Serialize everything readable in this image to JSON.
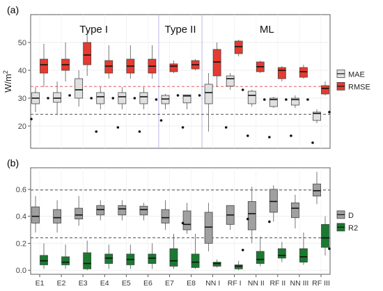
{
  "chart_data": [
    {
      "type": "boxplot",
      "panel_label": "(a)",
      "ylabel": "W/m²",
      "ylabel_main": "W/m",
      "ylabel_sup": "2",
      "ylim": [
        12,
        60
      ],
      "yticks": [
        "20",
        "30",
        "40",
        "50"
      ],
      "ytick_values": [
        20,
        30,
        40,
        50
      ],
      "categories": [
        "E1",
        "E2",
        "E3",
        "E4",
        "E5",
        "E6",
        "E7",
        "E8",
        "NN I",
        "RF I",
        "NN II",
        "RF II",
        "NN III",
        "RF III"
      ],
      "groups": [
        {
          "label": "Type I",
          "from": 0,
          "to": 5
        },
        {
          "label": "Type II",
          "from": 6,
          "to": 7
        },
        {
          "label": "ML",
          "from": 8,
          "to": 13
        }
      ],
      "reference_lines": [
        {
          "value": 34.2,
          "color": "#e04040"
        },
        {
          "value": 24.2,
          "color": "#333333"
        }
      ],
      "legend": {
        "position": "right",
        "entries": [
          "MAE",
          "RMSE"
        ]
      },
      "series": [
        {
          "name": "MAE",
          "color": "#e0e0e0",
          "boxes": [
            {
              "whisker_low": 25,
              "q1": 28,
              "median": 30,
              "q3": 32,
              "whisker_high": 34,
              "outlier": 22.5
            },
            {
              "whisker_low": 24,
              "q1": 28.5,
              "median": 30,
              "q3": 32,
              "whisker_high": 36,
              "outlier": null
            },
            {
              "whisker_low": 27,
              "q1": 30,
              "median": 33,
              "q3": 37,
              "whisker_high": 40,
              "outlier": null
            },
            {
              "whisker_low": 26,
              "q1": 28,
              "median": 30.5,
              "q3": 32,
              "whisker_high": 34,
              "outlier": 18
            },
            {
              "whisker_low": 26,
              "q1": 28,
              "median": 30.5,
              "q3": 32,
              "whisker_high": 34,
              "outlier": 19.5
            },
            {
              "whisker_low": 26,
              "q1": 28,
              "median": 30.5,
              "q3": 32,
              "whisker_high": 34,
              "outlier": 18
            },
            {
              "whisker_low": 26,
              "q1": 28,
              "median": 29.7,
              "q3": 31,
              "whisker_high": 31.5,
              "outlier": 22
            },
            {
              "whisker_low": 26,
              "q1": 28.3,
              "median": 30.8,
              "q3": 31.2,
              "whisker_high": 31.3,
              "outlier": 19.5
            },
            {
              "whisker_low": 18,
              "q1": 28,
              "median": 32,
              "q3": 35,
              "whisker_high": 39,
              "outlier": null
            },
            {
              "whisker_low": 33,
              "q1": 34.3,
              "median": 37,
              "q3": 38,
              "whisker_high": 39,
              "outlier": 19.5
            },
            {
              "whisker_low": 27,
              "q1": 28,
              "median": 31,
              "q3": 32.5,
              "whisker_high": 33,
              "outlier": 16.5
            },
            {
              "whisker_low": 26.5,
              "q1": 27,
              "median": 29.5,
              "q3": 30,
              "whisker_high": 30.5,
              "outlier": 16
            },
            {
              "whisker_low": 26.5,
              "q1": 27.5,
              "median": 29.5,
              "q3": 30,
              "whisker_high": 31,
              "outlier": 16.5
            },
            {
              "whisker_low": 21,
              "q1": 22,
              "median": 24.5,
              "q3": 25,
              "whisker_high": 26,
              "outlier": 14
            }
          ]
        },
        {
          "name": "RMSE",
          "color": "#e53b30",
          "boxes": [
            {
              "whisker_low": 34,
              "q1": 39,
              "median": 42,
              "q3": 44,
              "whisker_high": 49.5,
              "outlier": 30
            },
            {
              "whisker_low": 36,
              "q1": 40,
              "median": 42,
              "q3": 44,
              "whisker_high": 50,
              "outlier": 31
            },
            {
              "whisker_low": 38,
              "q1": 42,
              "median": 45.5,
              "q3": 50,
              "whisker_high": 54,
              "outlier": 30
            },
            {
              "whisker_low": 37,
              "q1": 39,
              "median": 41.5,
              "q3": 43.5,
              "whisker_high": 49,
              "outlier": 30
            },
            {
              "whisker_low": 37,
              "q1": 39,
              "median": 41.5,
              "q3": 44,
              "whisker_high": 49,
              "outlier": 30
            },
            {
              "whisker_low": 37,
              "q1": 39,
              "median": 41.5,
              "q3": 44,
              "whisker_high": 49,
              "outlier": 29.5
            },
            {
              "whisker_low": 39,
              "q1": 39.5,
              "median": 41.5,
              "q3": 42.3,
              "whisker_high": 43.5,
              "outlier": 31
            },
            {
              "whisker_low": 40,
              "q1": 40.5,
              "median": 42,
              "q3": 43.5,
              "whisker_high": 44,
              "outlier": 31
            },
            {
              "whisker_low": 34,
              "q1": 38,
              "median": 43,
              "q3": 47.5,
              "whisker_high": 50,
              "outlier": null
            },
            {
              "whisker_low": 45,
              "q1": 46,
              "median": 48.5,
              "q3": 50.5,
              "whisker_high": 51,
              "outlier": 33
            },
            {
              "whisker_low": 39,
              "q1": 39.5,
              "median": 41.3,
              "q3": 43,
              "whisker_high": 43.5,
              "outlier": 29.5
            },
            {
              "whisker_low": 36,
              "q1": 37,
              "median": 40,
              "q3": 41,
              "whisker_high": 41.5,
              "outlier": 29.5
            },
            {
              "whisker_low": 37,
              "q1": 37.5,
              "median": 39.5,
              "q3": 41,
              "whisker_high": 42,
              "outlier": 29.5
            },
            {
              "whisker_low": 31,
              "q1": 31.5,
              "median": 33.5,
              "q3": 34.5,
              "whisker_high": 36,
              "outlier": 25
            }
          ]
        }
      ]
    },
    {
      "type": "boxplot",
      "panel_label": "(b)",
      "ylim": [
        -0.03,
        0.76
      ],
      "yticks": [
        "0.0",
        "0.2",
        "0.4",
        "0.6"
      ],
      "ytick_values": [
        0,
        0.2,
        0.4,
        0.6
      ],
      "categories": [
        "E1",
        "E2",
        "E3",
        "E4",
        "E5",
        "E6",
        "E7",
        "E8",
        "NN I",
        "RF I",
        "NN II",
        "RF II",
        "NN III",
        "RF III"
      ],
      "reference_lines": [
        {
          "value": 0.595,
          "color": "#333333"
        },
        {
          "value": 0.24,
          "color": "#333333"
        }
      ],
      "legend": {
        "position": "right",
        "entries": [
          "D",
          "R2"
        ]
      },
      "series": [
        {
          "name": "D",
          "color": "#a0a0a0",
          "boxes": [
            {
              "whisker_low": 0.28,
              "q1": 0.35,
              "median": 0.4,
              "q3": 0.47,
              "whisker_high": 0.55,
              "outlier": null
            },
            {
              "whisker_low": 0.28,
              "q1": 0.35,
              "median": 0.39,
              "q3": 0.45,
              "whisker_high": 0.52,
              "outlier": null
            },
            {
              "whisker_low": 0.33,
              "q1": 0.38,
              "median": 0.41,
              "q3": 0.46,
              "whisker_high": 0.55,
              "outlier": null
            },
            {
              "whisker_low": 0.37,
              "q1": 0.41,
              "median": 0.45,
              "q3": 0.48,
              "whisker_high": 0.52,
              "outlier": null
            },
            {
              "whisker_low": 0.37,
              "q1": 0.41,
              "median": 0.455,
              "q3": 0.48,
              "whisker_high": 0.52,
              "outlier": null
            },
            {
              "whisker_low": 0.37,
              "q1": 0.41,
              "median": 0.45,
              "q3": 0.475,
              "whisker_high": 0.5,
              "outlier": null
            },
            {
              "whisker_low": 0.3,
              "q1": 0.35,
              "median": 0.39,
              "q3": 0.45,
              "whisker_high": 0.52,
              "outlier": null
            },
            {
              "whisker_low": 0.27,
              "q1": 0.3,
              "median": 0.34,
              "q3": 0.44,
              "whisker_high": 0.5,
              "outlier": 0.35
            },
            {
              "whisker_low": 0.14,
              "q1": 0.2,
              "median": 0.32,
              "q3": 0.43,
              "whisker_high": 0.5,
              "outlier": null
            },
            {
              "whisker_low": 0.3,
              "q1": 0.34,
              "median": 0.41,
              "q3": 0.48,
              "whisker_high": 0.48,
              "outlier": null
            },
            {
              "whisker_low": 0.2,
              "q1": 0.3,
              "median": 0.42,
              "q3": 0.51,
              "whisker_high": 0.62,
              "outlier": 0.38
            },
            {
              "whisker_low": 0.36,
              "q1": 0.43,
              "median": 0.51,
              "q3": 0.6,
              "whisker_high": 0.63,
              "outlier": 0.36
            },
            {
              "whisker_low": 0.31,
              "q1": 0.39,
              "median": 0.46,
              "q3": 0.5,
              "whisker_high": 0.56,
              "outlier": null
            },
            {
              "whisker_low": 0.49,
              "q1": 0.55,
              "median": 0.59,
              "q3": 0.64,
              "whisker_high": 0.73,
              "outlier": null
            }
          ]
        },
        {
          "name": "R2",
          "color": "#1a7a30",
          "boxes": [
            {
              "whisker_low": 0.01,
              "q1": 0.04,
              "median": 0.07,
              "q3": 0.11,
              "whisker_high": 0.2,
              "outlier": null
            },
            {
              "whisker_low": 0.01,
              "q1": 0.04,
              "median": 0.06,
              "q3": 0.1,
              "whisker_high": 0.19,
              "outlier": null
            },
            {
              "whisker_low": 0.0,
              "q1": 0.01,
              "median": 0.05,
              "q3": 0.13,
              "whisker_high": 0.22,
              "outlier": null
            },
            {
              "whisker_low": 0.01,
              "q1": 0.05,
              "median": 0.09,
              "q3": 0.12,
              "whisker_high": 0.19,
              "outlier": null
            },
            {
              "whisker_low": 0.01,
              "q1": 0.04,
              "median": 0.08,
              "q3": 0.12,
              "whisker_high": 0.19,
              "outlier": null
            },
            {
              "whisker_low": 0.01,
              "q1": 0.05,
              "median": 0.09,
              "q3": 0.12,
              "whisker_high": 0.2,
              "outlier": null
            },
            {
              "whisker_low": 0.01,
              "q1": 0.03,
              "median": 0.07,
              "q3": 0.16,
              "whisker_high": 0.27,
              "outlier": null
            },
            {
              "whisker_low": 0.01,
              "q1": 0.02,
              "median": 0.06,
              "q3": 0.12,
              "whisker_high": 0.27,
              "outlier": null
            },
            {
              "whisker_low": 0.02,
              "q1": 0.03,
              "median": 0.05,
              "q3": 0.06,
              "whisker_high": 0.08,
              "outlier": null
            },
            {
              "whisker_low": 0.0,
              "q1": 0.01,
              "median": 0.03,
              "q3": 0.04,
              "whisker_high": 0.07,
              "outlier": 0.15
            },
            {
              "whisker_low": 0.03,
              "q1": 0.05,
              "median": 0.08,
              "q3": 0.14,
              "whisker_high": 0.25,
              "outlier": null
            },
            {
              "whisker_low": 0.06,
              "q1": 0.09,
              "median": 0.11,
              "q3": 0.16,
              "whisker_high": 0.21,
              "outlier": null
            },
            {
              "whisker_low": 0.04,
              "q1": 0.06,
              "median": 0.1,
              "q3": 0.16,
              "whisker_high": 0.28,
              "outlier": null
            },
            {
              "whisker_low": 0.11,
              "q1": 0.17,
              "median": 0.24,
              "q3": 0.34,
              "whisker_high": 0.4,
              "outlier": 0.16
            }
          ]
        }
      ]
    }
  ]
}
